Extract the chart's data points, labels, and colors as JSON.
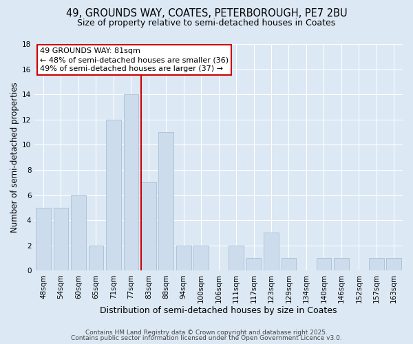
{
  "title": "49, GROUNDS WAY, COATES, PETERBOROUGH, PE7 2BU",
  "subtitle": "Size of property relative to semi-detached houses in Coates",
  "xlabel": "Distribution of semi-detached houses by size in Coates",
  "ylabel": "Number of semi-detached properties",
  "bar_labels": [
    "48sqm",
    "54sqm",
    "60sqm",
    "65sqm",
    "71sqm",
    "77sqm",
    "83sqm",
    "88sqm",
    "94sqm",
    "100sqm",
    "106sqm",
    "111sqm",
    "117sqm",
    "123sqm",
    "129sqm",
    "134sqm",
    "140sqm",
    "146sqm",
    "152sqm",
    "157sqm",
    "163sqm"
  ],
  "bar_heights": [
    5,
    5,
    6,
    2,
    12,
    14,
    7,
    11,
    2,
    2,
    0,
    2,
    1,
    3,
    1,
    0,
    1,
    1,
    0,
    1,
    1
  ],
  "bar_color": "#ccdcec",
  "bar_edge_color": "#a8c0d4",
  "vline_color": "#cc0000",
  "annotation_title": "49 GROUNDS WAY: 81sqm",
  "annotation_line1": "← 48% of semi-detached houses are smaller (36)",
  "annotation_line2": "49% of semi-detached houses are larger (37) →",
  "annotation_box_facecolor": "#ffffff",
  "annotation_box_edgecolor": "#cc0000",
  "ylim": [
    0,
    18
  ],
  "yticks": [
    0,
    2,
    4,
    6,
    8,
    10,
    12,
    14,
    16,
    18
  ],
  "background_color": "#dce8f4",
  "plot_bg_color": "#dce8f4",
  "grid_color": "#ffffff",
  "footer1": "Contains HM Land Registry data © Crown copyright and database right 2025.",
  "footer2": "Contains public sector information licensed under the Open Government Licence v3.0.",
  "title_fontsize": 10.5,
  "subtitle_fontsize": 9,
  "xlabel_fontsize": 9,
  "ylabel_fontsize": 8.5,
  "tick_fontsize": 7.5,
  "annotation_fontsize": 8,
  "footer_fontsize": 6.5
}
